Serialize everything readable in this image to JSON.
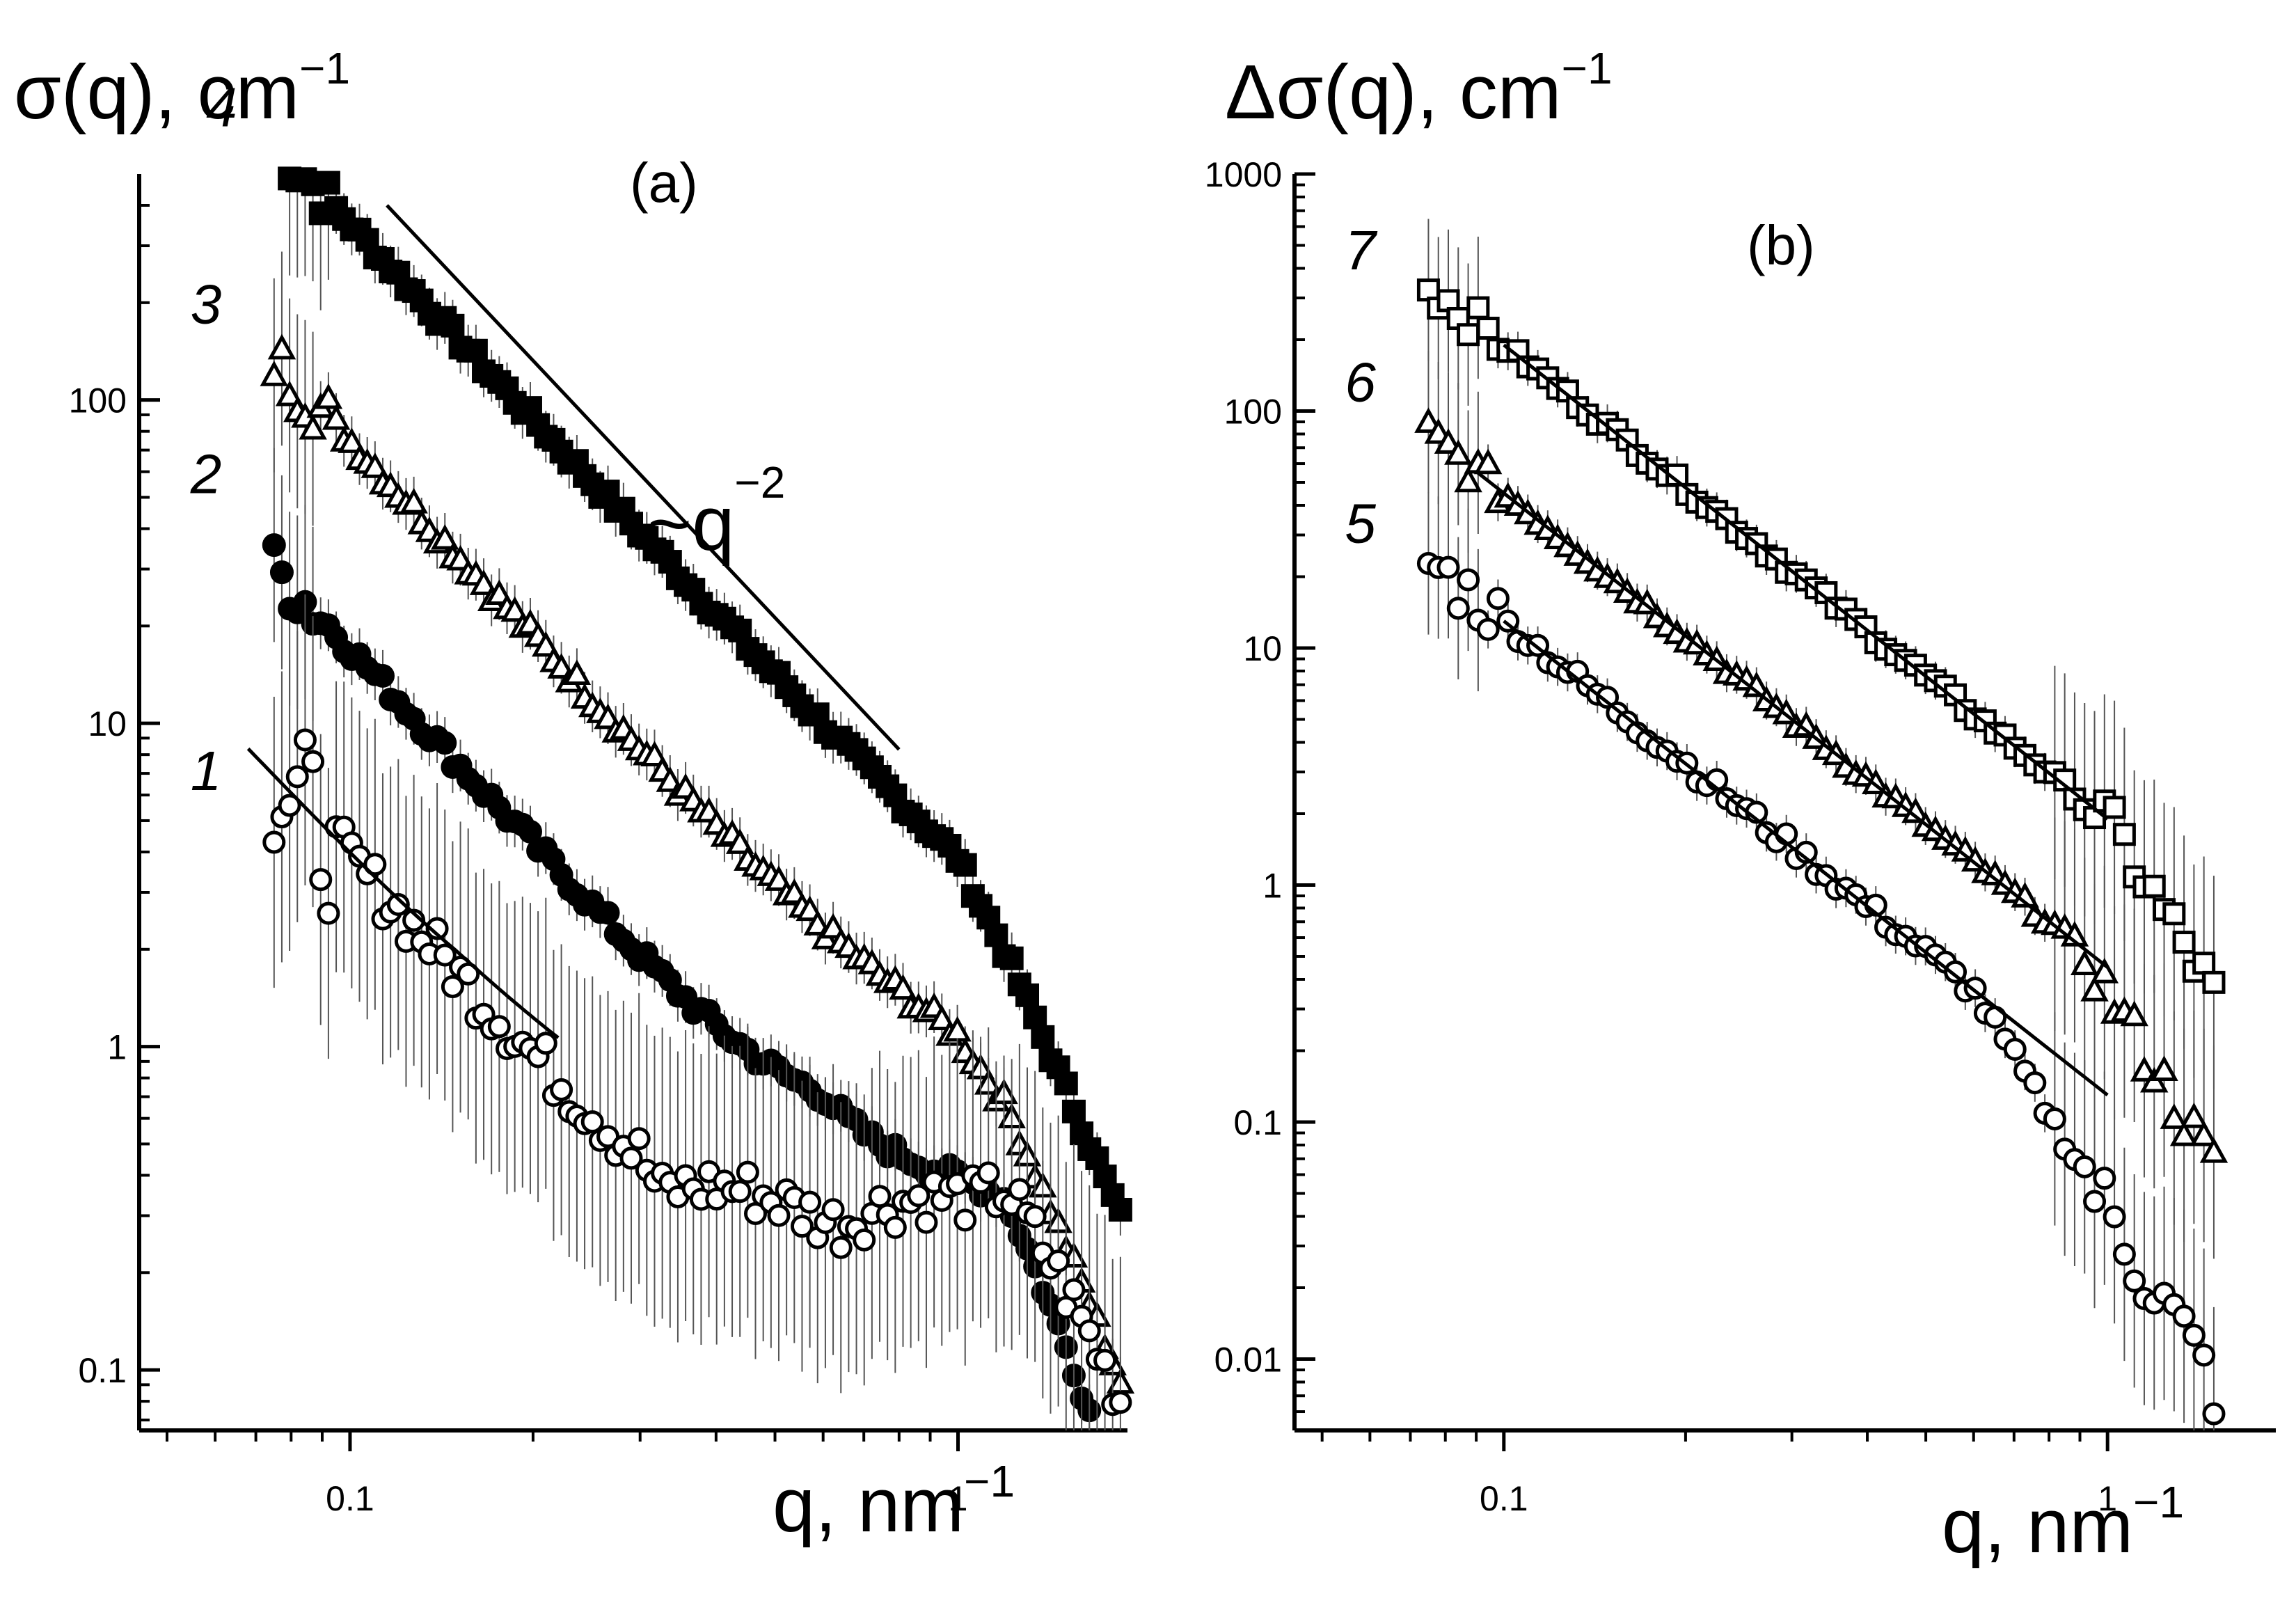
{
  "figure": {
    "panels": [
      "a",
      "b"
    ]
  },
  "chart_data": [
    {
      "id": "a",
      "type": "scatter",
      "title": "(a)",
      "ylabel": "σ(q), cm",
      "ylabel_exp": "−1",
      "xlabel": "q, nm",
      "xlabel_exp": "−1",
      "xscale": "log",
      "yscale": "log",
      "xlim": [
        0.045,
        1.9
      ],
      "ylim": [
        0.065,
        500
      ],
      "xticks": [
        {
          "value": 0.1,
          "label": "0.1"
        },
        {
          "value": 1,
          "label": "1"
        }
      ],
      "yticks": [
        {
          "value": 0.1,
          "label": "0.1"
        },
        {
          "value": 1,
          "label": "1"
        },
        {
          "value": 10,
          "label": "10"
        },
        {
          "value": 100,
          "label": "100"
        }
      ],
      "annotation": {
        "text": "~q",
        "exp": "−2",
        "line": {
          "x": [
            0.115,
            0.8
          ],
          "y": [
            400,
            8.3
          ]
        }
      },
      "series": [
        {
          "name": "4",
          "label": "4",
          "marker": "filled-square",
          "amp": 3.5,
          "slope": 2.0,
          "q0": 0.0,
          "knee": 1.0,
          "base": 0.0,
          "noise": 0.05,
          "fit": null
        },
        {
          "name": "3",
          "label": "3",
          "marker": "open-triangle",
          "amp": 0.75,
          "slope": 2.0,
          "q0": 0.0,
          "knee": 1.0,
          "base": 0.18,
          "noise": 0.06,
          "fit": null
        },
        {
          "name": "2",
          "label": "2",
          "marker": "filled-circle",
          "amp": 0.17,
          "slope": 2.0,
          "q0": 0.0,
          "knee": 0.6,
          "base": 0.12,
          "noise": 0.06,
          "fit": null
        },
        {
          "name": "1",
          "label": "1",
          "marker": "open-circle",
          "amp": 0.038,
          "slope": 2.0,
          "q0": 0.0,
          "knee": 0.3,
          "base": 0.3,
          "noise": 0.16,
          "fit": {
            "qmin": 0.068,
            "qmax": 0.22
          }
        }
      ],
      "q_range": [
        0.075,
        1.85
      ]
    },
    {
      "id": "b",
      "type": "scatter",
      "title": "(b)",
      "ylabel": "Δσ(q), cm",
      "ylabel_exp": "−1",
      "xlabel": "q, nm",
      "xlabel_exp": "−1",
      "xscale": "log",
      "yscale": "log",
      "xlim": [
        0.045,
        1.9
      ],
      "ylim": [
        0.005,
        1000
      ],
      "xticks": [
        {
          "value": 0.1,
          "label": "0.1"
        },
        {
          "value": 1,
          "label": "1"
        }
      ],
      "yticks": [
        {
          "value": 0.01,
          "label": "0.01"
        },
        {
          "value": 0.1,
          "label": "0.1"
        },
        {
          "value": 1,
          "label": "1"
        },
        {
          "value": 10,
          "label": "10"
        },
        {
          "value": 100,
          "label": "100"
        },
        {
          "value": 1000,
          "label": "1000"
        }
      ],
      "series": [
        {
          "name": "7",
          "label": "7",
          "marker": "open-square",
          "amp": 1.9,
          "slope": 2.0,
          "q0": 0.0,
          "knee": 1.0,
          "base": 0.0,
          "noise": 0.05,
          "fit": {
            "qmin": 0.1,
            "qmax": 1.0
          }
        },
        {
          "name": "6",
          "label": "6",
          "marker": "open-triangle",
          "amp": 0.45,
          "slope": 2.0,
          "q0": 0.0,
          "knee": 0.9,
          "base": 0.0,
          "noise": 0.05,
          "fit": {
            "qmin": 0.09,
            "qmax": 1.0
          }
        },
        {
          "name": "5",
          "label": "5",
          "marker": "open-circle",
          "amp": 0.13,
          "slope": 2.0,
          "q0": 0.0,
          "knee": 0.6,
          "base": 0.0,
          "noise": 0.08,
          "fit": {
            "qmin": 0.1,
            "qmax": 1.0
          }
        }
      ],
      "q_range": [
        0.075,
        1.5
      ]
    }
  ]
}
